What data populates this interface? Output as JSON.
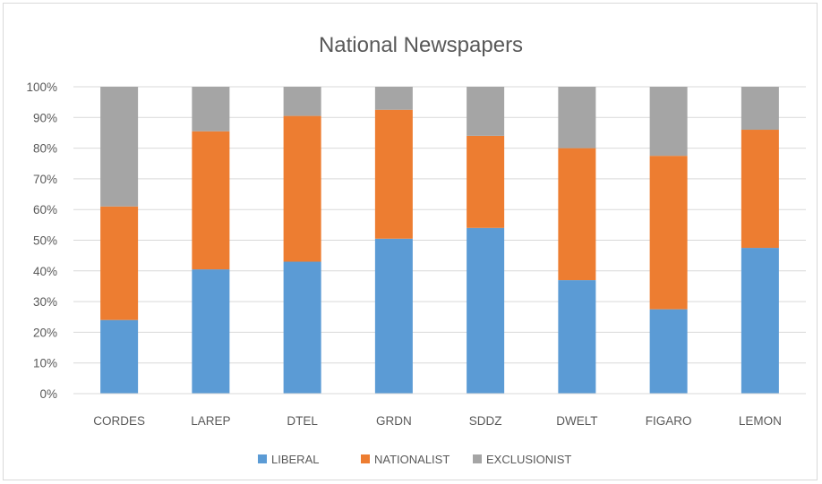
{
  "chart_data": {
    "type": "bar",
    "stacked": true,
    "percent_stacked": true,
    "title": "National Newspapers",
    "categories": [
      "CORDES",
      "LAREP",
      "DTEL",
      "GRDN",
      "SDDZ",
      "DWELT",
      "FIGARO",
      "LEMON"
    ],
    "series": [
      {
        "name": "LIBERAL",
        "color": "#5b9bd5",
        "values": [
          24,
          40.5,
          43,
          50.5,
          54,
          37,
          27.5,
          47.5
        ]
      },
      {
        "name": "NATIONALIST",
        "color": "#ed7d31",
        "values": [
          37,
          45,
          47.5,
          42,
          30,
          43,
          50,
          38.5
        ]
      },
      {
        "name": "EXCLUSIONIST",
        "color": "#a5a5a5",
        "values": [
          39,
          14.5,
          9.5,
          7.5,
          16,
          20,
          22.5,
          14
        ]
      }
    ],
    "ylim": [
      0,
      100
    ],
    "yticks": [
      "0%",
      "10%",
      "20%",
      "30%",
      "40%",
      "50%",
      "60%",
      "70%",
      "80%",
      "90%",
      "100%"
    ],
    "grid": true,
    "legend_position": "bottom",
    "xlabel": "",
    "ylabel": ""
  }
}
